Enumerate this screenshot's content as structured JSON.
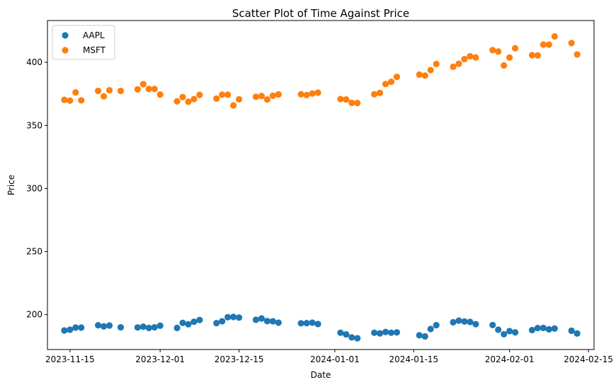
{
  "chart_data": {
    "type": "scatter",
    "title": "Scatter Plot of Time Against Price",
    "xlabel": "Date",
    "ylabel": "Price",
    "xlim": [
      "2023-11-11",
      "2024-02-16"
    ],
    "ylim": [
      172.3,
      433.2
    ],
    "x_ticks": [
      "2023-11-15",
      "2023-12-01",
      "2023-12-15",
      "2024-01-01",
      "2024-01-15",
      "2024-02-01",
      "2024-02-15"
    ],
    "y_ticks": [
      200,
      250,
      300,
      350,
      400
    ],
    "legend_position": "top-left",
    "grid": false,
    "series": [
      {
        "name": "AAPL",
        "color": "#1f77b4",
        "points": [
          [
            "2023-11-14",
            187.4
          ],
          [
            "2023-11-15",
            188.0
          ],
          [
            "2023-11-16",
            189.7
          ],
          [
            "2023-11-17",
            189.7
          ],
          [
            "2023-11-20",
            191.5
          ],
          [
            "2023-11-21",
            190.6
          ],
          [
            "2023-11-22",
            191.3
          ],
          [
            "2023-11-24",
            189.9
          ],
          [
            "2023-11-27",
            189.8
          ],
          [
            "2023-11-28",
            190.4
          ],
          [
            "2023-11-29",
            189.4
          ],
          [
            "2023-11-30",
            189.9
          ],
          [
            "2023-12-01",
            191.2
          ],
          [
            "2023-12-04",
            189.4
          ],
          [
            "2023-12-05",
            193.4
          ],
          [
            "2023-12-06",
            192.3
          ],
          [
            "2023-12-07",
            194.3
          ],
          [
            "2023-12-08",
            195.7
          ],
          [
            "2023-12-11",
            193.2
          ],
          [
            "2023-12-12",
            194.7
          ],
          [
            "2023-12-13",
            197.9
          ],
          [
            "2023-12-14",
            198.1
          ],
          [
            "2023-12-15",
            197.6
          ],
          [
            "2023-12-18",
            195.9
          ],
          [
            "2023-12-19",
            196.9
          ],
          [
            "2023-12-20",
            194.8
          ],
          [
            "2023-12-21",
            194.7
          ],
          [
            "2023-12-22",
            193.6
          ],
          [
            "2023-12-26",
            193.1
          ],
          [
            "2023-12-27",
            193.2
          ],
          [
            "2023-12-28",
            193.6
          ],
          [
            "2023-12-29",
            192.5
          ],
          [
            "2024-01-02",
            185.6
          ],
          [
            "2024-01-03",
            184.3
          ],
          [
            "2024-01-04",
            181.9
          ],
          [
            "2024-01-05",
            181.2
          ],
          [
            "2024-01-08",
            185.6
          ],
          [
            "2024-01-09",
            185.1
          ],
          [
            "2024-01-10",
            186.2
          ],
          [
            "2024-01-11",
            185.6
          ],
          [
            "2024-01-12",
            185.9
          ],
          [
            "2024-01-16",
            183.6
          ],
          [
            "2024-01-17",
            182.7
          ],
          [
            "2024-01-18",
            188.6
          ],
          [
            "2024-01-19",
            191.6
          ],
          [
            "2024-01-22",
            193.9
          ],
          [
            "2024-01-23",
            195.2
          ],
          [
            "2024-01-24",
            194.5
          ],
          [
            "2024-01-25",
            194.2
          ],
          [
            "2024-01-26",
            192.4
          ],
          [
            "2024-01-29",
            191.7
          ],
          [
            "2024-01-30",
            188.0
          ],
          [
            "2024-01-31",
            184.4
          ],
          [
            "2024-02-01",
            186.9
          ],
          [
            "2024-02-02",
            185.9
          ],
          [
            "2024-02-05",
            187.7
          ],
          [
            "2024-02-06",
            189.3
          ],
          [
            "2024-02-07",
            189.4
          ],
          [
            "2024-02-08",
            188.3
          ],
          [
            "2024-02-09",
            188.9
          ],
          [
            "2024-02-12",
            187.2
          ],
          [
            "2024-02-13",
            185.0
          ]
        ]
      },
      {
        "name": "MSFT",
        "color": "#ff7f0e",
        "points": [
          [
            "2023-11-14",
            370.3
          ],
          [
            "2023-11-15",
            369.7
          ],
          [
            "2023-11-16",
            376.2
          ],
          [
            "2023-11-17",
            369.9
          ],
          [
            "2023-11-20",
            377.4
          ],
          [
            "2023-11-21",
            373.1
          ],
          [
            "2023-11-22",
            377.9
          ],
          [
            "2023-11-24",
            377.4
          ],
          [
            "2023-11-27",
            378.6
          ],
          [
            "2023-11-28",
            382.7
          ],
          [
            "2023-11-29",
            378.9
          ],
          [
            "2023-11-30",
            378.9
          ],
          [
            "2023-12-01",
            374.5
          ],
          [
            "2023-12-04",
            369.1
          ],
          [
            "2023-12-05",
            372.5
          ],
          [
            "2023-12-06",
            368.8
          ],
          [
            "2023-12-07",
            370.9
          ],
          [
            "2023-12-08",
            374.2
          ],
          [
            "2023-12-11",
            371.3
          ],
          [
            "2023-12-12",
            374.4
          ],
          [
            "2023-12-13",
            374.4
          ],
          [
            "2023-12-14",
            365.9
          ],
          [
            "2023-12-15",
            370.7
          ],
          [
            "2023-12-18",
            372.7
          ],
          [
            "2023-12-19",
            373.3
          ],
          [
            "2023-12-20",
            370.6
          ],
          [
            "2023-12-21",
            373.5
          ],
          [
            "2023-12-22",
            374.6
          ],
          [
            "2023-12-26",
            374.7
          ],
          [
            "2023-12-27",
            374.1
          ],
          [
            "2023-12-28",
            375.3
          ],
          [
            "2023-12-29",
            376.0
          ],
          [
            "2024-01-02",
            370.9
          ],
          [
            "2024-01-03",
            370.6
          ],
          [
            "2024-01-04",
            367.9
          ],
          [
            "2024-01-05",
            367.8
          ],
          [
            "2024-01-08",
            374.7
          ],
          [
            "2024-01-09",
            375.8
          ],
          [
            "2024-01-10",
            382.8
          ],
          [
            "2024-01-11",
            384.6
          ],
          [
            "2024-01-12",
            388.5
          ],
          [
            "2024-01-16",
            390.3
          ],
          [
            "2024-01-17",
            389.5
          ],
          [
            "2024-01-18",
            393.9
          ],
          [
            "2024-01-19",
            398.7
          ],
          [
            "2024-01-22",
            396.5
          ],
          [
            "2024-01-23",
            398.9
          ],
          [
            "2024-01-24",
            402.6
          ],
          [
            "2024-01-25",
            404.9
          ],
          [
            "2024-01-26",
            403.9
          ],
          [
            "2024-01-29",
            409.7
          ],
          [
            "2024-01-30",
            408.6
          ],
          [
            "2024-01-31",
            397.6
          ],
          [
            "2024-02-01",
            403.8
          ],
          [
            "2024-02-02",
            411.2
          ],
          [
            "2024-02-05",
            405.7
          ],
          [
            "2024-02-06",
            405.5
          ],
          [
            "2024-02-07",
            414.1
          ],
          [
            "2024-02-08",
            414.1
          ],
          [
            "2024-02-09",
            420.6
          ],
          [
            "2024-02-12",
            415.3
          ],
          [
            "2024-02-13",
            406.3
          ]
        ]
      }
    ]
  }
}
